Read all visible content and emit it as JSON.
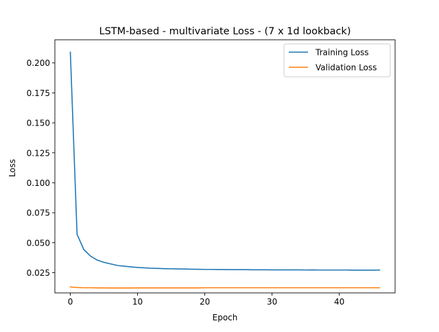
{
  "chart_data": {
    "type": "line",
    "title": "LSTM-based - multivariate Loss - (7 x 1d lookback)",
    "xlabel": "Epoch",
    "ylabel": "Loss",
    "xlim": [
      -2.3,
      48.3
    ],
    "ylim": [
      0.0081,
      0.2193
    ],
    "xticks": [
      0,
      10,
      20,
      30,
      40
    ],
    "yticks": [
      0.025,
      0.05,
      0.075,
      0.1,
      0.125,
      0.15,
      0.175,
      0.2
    ],
    "ytick_labels": [
      "0.025",
      "0.050",
      "0.075",
      "0.100",
      "0.125",
      "0.150",
      "0.175",
      "0.200"
    ],
    "grid": false,
    "legend": "top-right",
    "x": [
      0,
      1,
      2,
      3,
      4,
      5,
      6,
      7,
      8,
      9,
      10,
      11,
      12,
      13,
      14,
      15,
      16,
      17,
      18,
      19,
      20,
      21,
      22,
      23,
      24,
      25,
      26,
      27,
      28,
      29,
      30,
      31,
      32,
      33,
      34,
      35,
      36,
      37,
      38,
      39,
      40,
      41,
      42,
      43,
      44,
      45,
      46
    ],
    "series": [
      {
        "name": "Training Loss",
        "color": "#1f77b4",
        "values": [
          0.209,
          0.057,
          0.0443,
          0.0388,
          0.0355,
          0.0336,
          0.0323,
          0.031,
          0.0304,
          0.0298,
          0.0293,
          0.029,
          0.0287,
          0.0285,
          0.0283,
          0.0282,
          0.0281,
          0.028,
          0.0279,
          0.0278,
          0.0277,
          0.0277,
          0.0276,
          0.0276,
          0.0275,
          0.0275,
          0.0275,
          0.0274,
          0.0274,
          0.0274,
          0.0273,
          0.0273,
          0.0273,
          0.0273,
          0.0273,
          0.0272,
          0.0273,
          0.0272,
          0.0272,
          0.0272,
          0.0272,
          0.0272,
          0.0271,
          0.0271,
          0.0271,
          0.0271,
          0.0272
        ]
      },
      {
        "name": "Validation Loss",
        "color": "#ff7f0e",
        "values": [
          0.0131,
          0.0126,
          0.0124,
          0.0124,
          0.0123,
          0.0123,
          0.0122,
          0.0122,
          0.0122,
          0.0122,
          0.0123,
          0.0123,
          0.0123,
          0.0123,
          0.0123,
          0.0123,
          0.0123,
          0.0123,
          0.0123,
          0.0123,
          0.0124,
          0.0124,
          0.0124,
          0.0124,
          0.0124,
          0.0124,
          0.0124,
          0.0124,
          0.0124,
          0.0124,
          0.0124,
          0.0124,
          0.0124,
          0.0124,
          0.0124,
          0.0124,
          0.0124,
          0.0124,
          0.0124,
          0.0124,
          0.0124,
          0.0124,
          0.0124,
          0.0124,
          0.0124,
          0.0124,
          0.0124
        ]
      }
    ]
  }
}
